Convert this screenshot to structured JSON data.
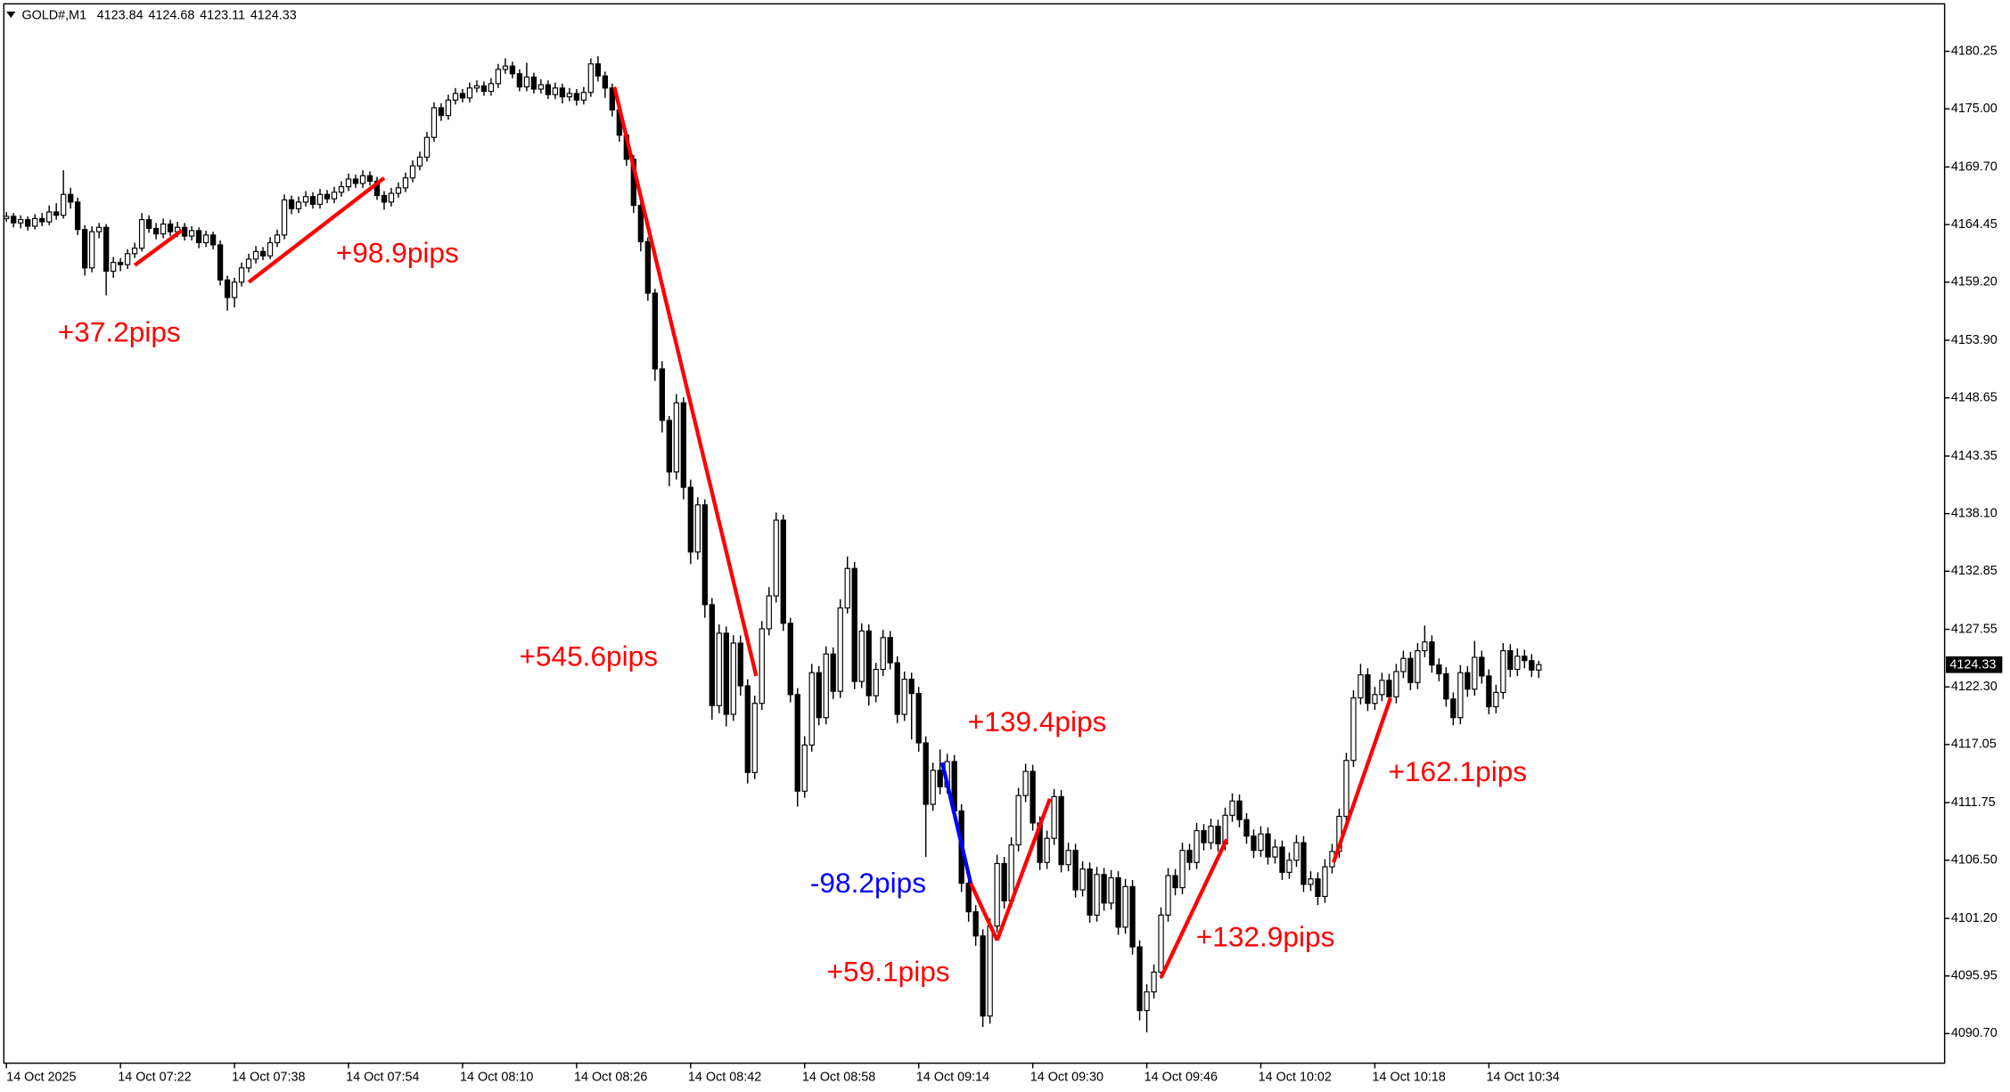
{
  "chart_data": {
    "type": "candlestick",
    "symbol": "GOLD#,M1",
    "up_color": "#ffffff",
    "down_color": "#000000",
    "wick_color": "#000000",
    "grid": false,
    "ylim": [
      4088.0,
      4184.34
    ],
    "yticks": [
      4180.25,
      {
        "value": 4175,
        "label": "4175.00"
      },
      {
        "value": 4169.7,
        "label": "4169.70"
      },
      4164.45,
      {
        "value": 4159.2,
        "label": "4159.20"
      },
      {
        "value": 4153.9,
        "label": "4153.90"
      },
      4148.65,
      4143.35,
      {
        "value": 4138.1,
        "label": "4138.10"
      },
      4132.85,
      4127.55,
      {
        "value": 4122.3,
        "label": "4122.30"
      },
      4117.05,
      4111.75,
      {
        "value": 4106.5,
        "label": "4106.50"
      },
      {
        "value": 4101.2,
        "label": "4101.20"
      },
      4095.95,
      {
        "value": 4090.7,
        "label": "4090.70"
      }
    ],
    "categories": [
      "14 Oct 2025",
      null,
      null,
      null,
      null,
      null,
      null,
      null,
      null,
      null,
      null,
      null,
      null,
      null,
      null,
      null,
      "14 Oct 07:22",
      null,
      null,
      null,
      null,
      null,
      null,
      null,
      null,
      null,
      null,
      null,
      null,
      null,
      null,
      null,
      "14 Oct 07:38",
      null,
      null,
      null,
      null,
      null,
      null,
      null,
      null,
      null,
      null,
      null,
      null,
      null,
      null,
      null,
      "14 Oct 07:54",
      null,
      null,
      null,
      null,
      null,
      null,
      null,
      null,
      null,
      null,
      null,
      null,
      null,
      null,
      null,
      "14 Oct 08:10",
      null,
      null,
      null,
      null,
      null,
      null,
      null,
      null,
      null,
      null,
      null,
      null,
      null,
      null,
      null,
      "14 Oct 08:26",
      null,
      null,
      null,
      null,
      null,
      null,
      null,
      null,
      null,
      null,
      null,
      null,
      null,
      null,
      null,
      "14 Oct 08:42",
      null,
      null,
      null,
      null,
      null,
      null,
      null,
      null,
      null,
      null,
      null,
      null,
      null,
      null,
      null,
      "14 Oct 08:58",
      null,
      null,
      null,
      null,
      null,
      null,
      null,
      null,
      null,
      null,
      null,
      null,
      null,
      null,
      null,
      "14 Oct 09:14",
      null,
      null,
      null,
      null,
      null,
      null,
      null,
      null,
      null,
      null,
      null,
      null,
      null,
      null,
      null,
      "14 Oct 09:30",
      null,
      null,
      null,
      null,
      null,
      null,
      null,
      null,
      null,
      null,
      null,
      null,
      null,
      null,
      null,
      "14 Oct 09:46",
      null,
      null,
      null,
      null,
      null,
      null,
      null,
      null,
      null,
      null,
      null,
      null,
      null,
      null,
      null,
      "14 Oct 10:02",
      null,
      null,
      null,
      null,
      null,
      null,
      null,
      null,
      null,
      null,
      null,
      null,
      null,
      null,
      null,
      "14 Oct 10:18",
      null,
      null,
      null,
      null,
      null,
      null,
      null,
      null,
      null,
      null,
      null,
      null,
      null,
      null,
      null,
      "14 Oct 10:34",
      null,
      null,
      null,
      null,
      null,
      null,
      null
    ],
    "open": [
      4165.0,
      4165.2,
      4164.6,
      4164.9,
      4164.3,
      4165.0,
      4164.7,
      4165.6,
      4165.3,
      4167.2,
      4166.5,
      4164.0,
      4160.5,
      4163.8,
      4164.2,
      4160.2,
      4161.0,
      4160.8,
      4161.8,
      4162.3,
      4164.9,
      4164.1,
      4163.6,
      4164.5,
      4163.8,
      4164.2,
      4163.4,
      4163.9,
      4162.8,
      4163.5,
      4162.6,
      4159.4,
      4157.8,
      4159.2,
      4160.5,
      4161.3,
      4162.0,
      4161.6,
      4162.8,
      4163.5,
      4166.7,
      4165.9,
      4166.5,
      4167.0,
      4166.3,
      4167.2,
      4166.8,
      4167.4,
      4167.9,
      4168.6,
      4168.2,
      4168.9,
      4168.4,
      4167.1,
      4166.5,
      4167.3,
      4167.8,
      4168.7,
      4169.8,
      4170.6,
      4172.4,
      4175.1,
      4174.4,
      4175.8,
      4176.4,
      4176.0,
      4176.9,
      4177.1,
      4176.6,
      4177.3,
      4178.6,
      4178.9,
      4178.2,
      4177.0,
      4177.9,
      4176.8,
      4177.2,
      4176.3,
      4176.9,
      4176.1,
      4176.4,
      4175.8,
      4176.5,
      4179.1,
      4178.0,
      4176.9,
      4174.9,
      4172.6,
      4170.4,
      4166.2,
      4162.9,
      4158.2,
      4151.3,
      4146.6,
      4141.9,
      4148.2,
      4140.5,
      4134.6,
      4138.9,
      4129.8,
      4120.6,
      4127.2,
      4119.8,
      4126.3,
      4122.4,
      4114.5,
      4120.8,
      4127.6,
      4130.6,
      4137.5,
      4128.1,
      4121.6,
      4112.8,
      4117.0,
      4123.6,
      4119.5,
      4125.3,
      4121.9,
      4129.5,
      4133.1,
      4122.8,
      4127.4,
      4121.5,
      4123.9,
      4126.8,
      4124.5,
      4119.8,
      4123.0,
      4121.7,
      4117.2,
      4111.6,
      4114.7,
      4113.2,
      4115.5,
      4111.0,
      4104.4,
      4101.8,
      4099.6,
      4092.3,
      4100.5,
      4106.2,
      4102.8,
      4107.9,
      4112.4,
      4114.6,
      4109.9,
      4106.3,
      4108.5,
      4112.3,
      4106.1,
      4107.4,
      4103.8,
      4105.7,
      4101.5,
      4105.2,
      4102.6,
      4104.9,
      4100.4,
      4104.1,
      4098.6,
      4092.8,
      4094.5,
      4096.3,
      4101.5,
      4105.1,
      4104.0,
      4107.4,
      4106.3,
      4109.2,
      4108.1,
      4109.6,
      4108.0,
      4110.6,
      4111.9,
      4110.2,
      4108.7,
      4107.4,
      4108.9,
      4106.8,
      4107.7,
      4105.4,
      4106.5,
      4108.1,
      4104.3,
      4104.8,
      4103.2,
      4105.9,
      4107.3,
      4110.5,
      4115.6,
      4121.3,
      4123.4,
      4120.8,
      4121.6,
      4122.9,
      4121.4,
      4123.7,
      4124.9,
      4122.7,
      4125.6,
      4126.4,
      4124.3,
      4123.5,
      4121.2,
      4119.5,
      4123.6,
      4122.1,
      4125.0,
      4123.3,
      4120.5,
      4121.8,
      4125.6,
      4123.9,
      4125.1,
      4124.7,
      4123.84
    ],
    "high": [
      4165.6,
      4165.5,
      4165.3,
      4165.2,
      4165.4,
      4165.5,
      4166.2,
      4166.4,
      4169.4,
      4167.8,
      4166.9,
      4164.4,
      4164.3,
      4164.6,
      4164.5,
      4161.5,
      4161.4,
      4162.2,
      4162.8,
      4165.5,
      4165.3,
      4164.6,
      4165.0,
      4164.9,
      4164.7,
      4164.6,
      4164.3,
      4164.2,
      4163.9,
      4163.8,
      4163.0,
      4159.8,
      4159.6,
      4161.0,
      4161.8,
      4162.5,
      4162.4,
      4163.3,
      4164.0,
      4167.2,
      4167.1,
      4167.0,
      4167.5,
      4167.4,
      4167.7,
      4167.6,
      4167.9,
      4168.4,
      4169.1,
      4169.0,
      4169.4,
      4169.3,
      4168.8,
      4167.5,
      4167.8,
      4168.3,
      4169.2,
      4170.3,
      4171.1,
      4172.9,
      4175.6,
      4175.5,
      4176.3,
      4176.9,
      4176.8,
      4177.4,
      4177.6,
      4177.5,
      4177.8,
      4179.1,
      4179.6,
      4179.3,
      4178.6,
      4179.2,
      4178.3,
      4177.7,
      4177.6,
      4177.4,
      4177.3,
      4176.9,
      4176.8,
      4177.0,
      4179.6,
      4179.8,
      4178.4,
      4177.3,
      4175.3,
      4173.0,
      4170.8,
      4166.6,
      4163.3,
      4158.6,
      4152.0,
      4147.0,
      4149.0,
      4148.7,
      4141.2,
      4139.6,
      4139.4,
      4130.4,
      4128.0,
      4127.8,
      4127.0,
      4127.0,
      4123.0,
      4121.5,
      4128.3,
      4131.4,
      4138.2,
      4138.0,
      4128.6,
      4122.2,
      4117.8,
      4124.4,
      4124.2,
      4126.0,
      4125.9,
      4130.3,
      4134.2,
      4133.7,
      4128.1,
      4128.0,
      4124.5,
      4127.5,
      4127.4,
      4125.1,
      4123.7,
      4123.6,
      4122.3,
      4117.8,
      4115.4,
      4116.6,
      4116.2,
      4116.1,
      4111.6,
      4105.6,
      4102.4,
      4100.2,
      4101.2,
      4107.0,
      4106.8,
      4108.6,
      4113.1,
      4115.3,
      4115.2,
      4110.5,
      4109.2,
      4113.0,
      4112.9,
      4108.1,
      4108.0,
      4106.4,
      4106.3,
      4105.9,
      4105.8,
      4105.6,
      4105.5,
      4104.8,
      4104.7,
      4099.2,
      4095.2,
      4097.0,
      4102.2,
      4105.8,
      4105.7,
      4108.1,
      4108.0,
      4109.9,
      4109.8,
      4110.3,
      4110.2,
      4111.3,
      4112.6,
      4112.5,
      4110.8,
      4109.3,
      4109.6,
      4109.5,
      4108.4,
      4108.3,
      4107.2,
      4108.8,
      4108.7,
      4105.5,
      4105.4,
      4106.6,
      4108.0,
      4111.2,
      4116.3,
      4122.0,
      4124.4,
      4124.0,
      4122.3,
      4123.6,
      4123.5,
      4124.4,
      4125.6,
      4125.5,
      4126.3,
      4127.9,
      4127.0,
      4124.9,
      4124.1,
      4121.8,
      4124.3,
      4124.2,
      4126.5,
      4125.6,
      4123.9,
      4122.5,
      4126.3,
      4126.2,
      4125.8,
      4125.7,
      4125.3,
      4124.68
    ],
    "low": [
      4164.7,
      4164.2,
      4164.1,
      4163.9,
      4164.0,
      4164.3,
      4164.4,
      4164.9,
      4165.0,
      4165.9,
      4163.5,
      4159.8,
      4160.1,
      4163.2,
      4158.0,
      4159.6,
      4160.2,
      4160.4,
      4161.4,
      4162.0,
      4163.7,
      4163.1,
      4163.2,
      4163.4,
      4163.3,
      4163.0,
      4163.0,
      4162.3,
      4162.4,
      4162.2,
      4158.9,
      4156.6,
      4156.9,
      4158.8,
      4160.1,
      4160.9,
      4161.2,
      4161.3,
      4162.4,
      4163.1,
      4165.4,
      4165.5,
      4166.1,
      4165.9,
      4165.9,
      4166.4,
      4166.4,
      4167.0,
      4167.5,
      4167.8,
      4167.8,
      4168.0,
      4166.7,
      4165.8,
      4166.1,
      4166.9,
      4167.4,
      4168.3,
      4169.4,
      4170.2,
      4172.0,
      4173.9,
      4174.0,
      4175.4,
      4175.6,
      4175.6,
      4176.5,
      4176.2,
      4176.2,
      4176.9,
      4178.2,
      4177.8,
      4176.6,
      4176.6,
      4176.4,
      4176.4,
      4175.9,
      4175.9,
      4175.5,
      4175.7,
      4175.3,
      4175.4,
      4176.1,
      4177.5,
      4176.0,
      4174.3,
      4172.0,
      4169.8,
      4165.5,
      4162.0,
      4157.5,
      4150.2,
      4145.5,
      4140.6,
      4141.2,
      4139.4,
      4133.5,
      4133.9,
      4128.6,
      4119.3,
      4119.9,
      4118.7,
      4119.2,
      4121.5,
      4113.5,
      4113.9,
      4120.2,
      4127.0,
      4130.0,
      4127.4,
      4120.9,
      4111.4,
      4112.2,
      4116.4,
      4118.8,
      4118.9,
      4121.2,
      4121.3,
      4129.0,
      4122.1,
      4122.2,
      4120.6,
      4120.9,
      4123.3,
      4123.9,
      4119.0,
      4119.2,
      4117.5,
      4116.4,
      4106.8,
      4111.0,
      4112.5,
      4112.6,
      4110.3,
      4103.6,
      4100.9,
      4098.7,
      4091.3,
      4091.6,
      4099.9,
      4102.1,
      4102.2,
      4107.3,
      4111.8,
      4109.2,
      4105.6,
      4105.7,
      4107.9,
      4105.4,
      4105.5,
      4103.1,
      4103.2,
      4100.8,
      4100.9,
      4101.9,
      4102.0,
      4099.7,
      4099.8,
      4097.9,
      4091.9,
      4090.8,
      4093.9,
      4095.7,
      4100.9,
      4103.3,
      4103.4,
      4105.6,
      4105.7,
      4107.4,
      4107.5,
      4107.3,
      4107.4,
      4110.0,
      4109.5,
      4108.0,
      4106.7,
      4106.8,
      4106.1,
      4106.2,
      4104.7,
      4104.8,
      4105.9,
      4103.6,
      4103.7,
      4102.4,
      4102.6,
      4105.3,
      4106.7,
      4109.9,
      4115.0,
      4120.7,
      4120.1,
      4120.2,
      4121.0,
      4120.7,
      4120.8,
      4123.1,
      4122.0,
      4122.1,
      4125.0,
      4123.6,
      4122.8,
      4120.5,
      4118.8,
      4118.9,
      4121.4,
      4121.5,
      4122.6,
      4119.8,
      4119.9,
      4121.2,
      4123.2,
      4123.3,
      4124.0,
      4123.2,
      4123.11
    ],
    "close": [
      4165.2,
      4164.6,
      4164.9,
      4164.3,
      4165.0,
      4164.7,
      4165.6,
      4165.3,
      4167.2,
      4166.5,
      4164.0,
      4160.5,
      4163.8,
      4164.2,
      4160.2,
      4161.0,
      4160.8,
      4161.8,
      4162.3,
      4164.9,
      4164.1,
      4163.6,
      4164.5,
      4163.8,
      4164.2,
      4163.4,
      4163.9,
      4162.8,
      4163.5,
      4162.6,
      4159.4,
      4157.8,
      4159.2,
      4160.5,
      4161.3,
      4162.0,
      4161.6,
      4162.8,
      4163.5,
      4166.7,
      4165.9,
      4166.5,
      4167.0,
      4166.3,
      4167.2,
      4166.8,
      4167.4,
      4167.9,
      4168.6,
      4168.2,
      4168.9,
      4168.4,
      4167.1,
      4166.5,
      4167.3,
      4167.8,
      4168.7,
      4169.8,
      4170.6,
      4172.4,
      4175.1,
      4174.4,
      4175.8,
      4176.4,
      4176.0,
      4176.9,
      4177.1,
      4176.6,
      4177.3,
      4178.6,
      4178.9,
      4178.2,
      4177.0,
      4177.9,
      4176.8,
      4177.2,
      4176.3,
      4176.9,
      4176.1,
      4176.4,
      4175.8,
      4176.5,
      4179.1,
      4178.0,
      4176.9,
      4174.9,
      4172.6,
      4170.4,
      4166.2,
      4162.9,
      4158.2,
      4151.3,
      4146.6,
      4141.9,
      4148.2,
      4140.5,
      4134.6,
      4138.9,
      4129.8,
      4120.6,
      4127.2,
      4119.8,
      4126.3,
      4122.4,
      4114.5,
      4120.8,
      4127.6,
      4130.6,
      4137.5,
      4128.1,
      4121.6,
      4112.8,
      4117.0,
      4123.6,
      4119.5,
      4125.3,
      4121.9,
      4129.5,
      4133.1,
      4122.8,
      4127.4,
      4121.5,
      4123.9,
      4126.8,
      4124.5,
      4119.8,
      4123.0,
      4121.7,
      4117.2,
      4111.6,
      4114.7,
      4113.2,
      4115.5,
      4111.0,
      4104.4,
      4101.8,
      4099.6,
      4092.3,
      4100.5,
      4106.2,
      4102.8,
      4107.9,
      4112.4,
      4114.6,
      4109.9,
      4106.3,
      4108.5,
      4112.3,
      4106.1,
      4107.4,
      4103.8,
      4105.7,
      4101.5,
      4105.2,
      4102.6,
      4104.9,
      4100.4,
      4104.1,
      4098.6,
      4092.8,
      4094.5,
      4096.3,
      4101.5,
      4105.1,
      4104.0,
      4107.4,
      4106.3,
      4109.2,
      4108.1,
      4109.6,
      4108.0,
      4110.6,
      4111.9,
      4110.2,
      4108.7,
      4107.4,
      4108.9,
      4106.8,
      4107.7,
      4105.4,
      4106.5,
      4108.1,
      4104.3,
      4104.8,
      4103.2,
      4105.9,
      4107.3,
      4110.5,
      4115.6,
      4121.3,
      4123.4,
      4120.8,
      4121.6,
      4122.9,
      4121.4,
      4123.7,
      4124.9,
      4122.7,
      4125.6,
      4126.4,
      4124.3,
      4123.5,
      4121.2,
      4119.5,
      4123.6,
      4122.1,
      4125.0,
      4123.3,
      4120.5,
      4121.8,
      4125.6,
      4123.9,
      4125.1,
      4124.7,
      4123.84,
      4124.33
    ],
    "annotations": [
      {
        "text": "+37.2pips",
        "color": "#ff0000",
        "x": [
          18,
          24.6
        ],
        "y": [
          4160.75,
          4163.9
        ]
      },
      {
        "text": "+98.9pips",
        "color": "#ff0000",
        "x": [
          34,
          53
        ],
        "y": [
          4159.2,
          4168.7
        ]
      },
      {
        "text": "+545.6pips",
        "color": "#ff0000",
        "x": [
          85.3,
          105.2
        ],
        "y": [
          4177.0,
          4123.3
        ]
      },
      {
        "text": "-98.2pips",
        "color": "#0000ff",
        "x": [
          131.3,
          135.3
        ],
        "y": [
          4115.4,
          4104.4
        ]
      },
      {
        "text": "+59.1pips",
        "color": "#ff0000",
        "x": [
          135.3,
          139
        ],
        "y": [
          4104.4,
          4099.2
        ]
      },
      {
        "text": "+139.4pips",
        "color": "#ff0000",
        "x": [
          139,
          146.4
        ],
        "y": [
          4099.2,
          4112.1
        ]
      },
      {
        "text": "+132.9pips",
        "color": "#ff0000",
        "x": [
          162,
          171.2
        ],
        "y": [
          4095.8,
          4108.4
        ]
      },
      {
        "text": "+162.1pips",
        "color": "#ff0000",
        "x": [
          186.2,
          194.2
        ],
        "y": [
          4106.3,
          4121.3
        ]
      }
    ]
  }
}
